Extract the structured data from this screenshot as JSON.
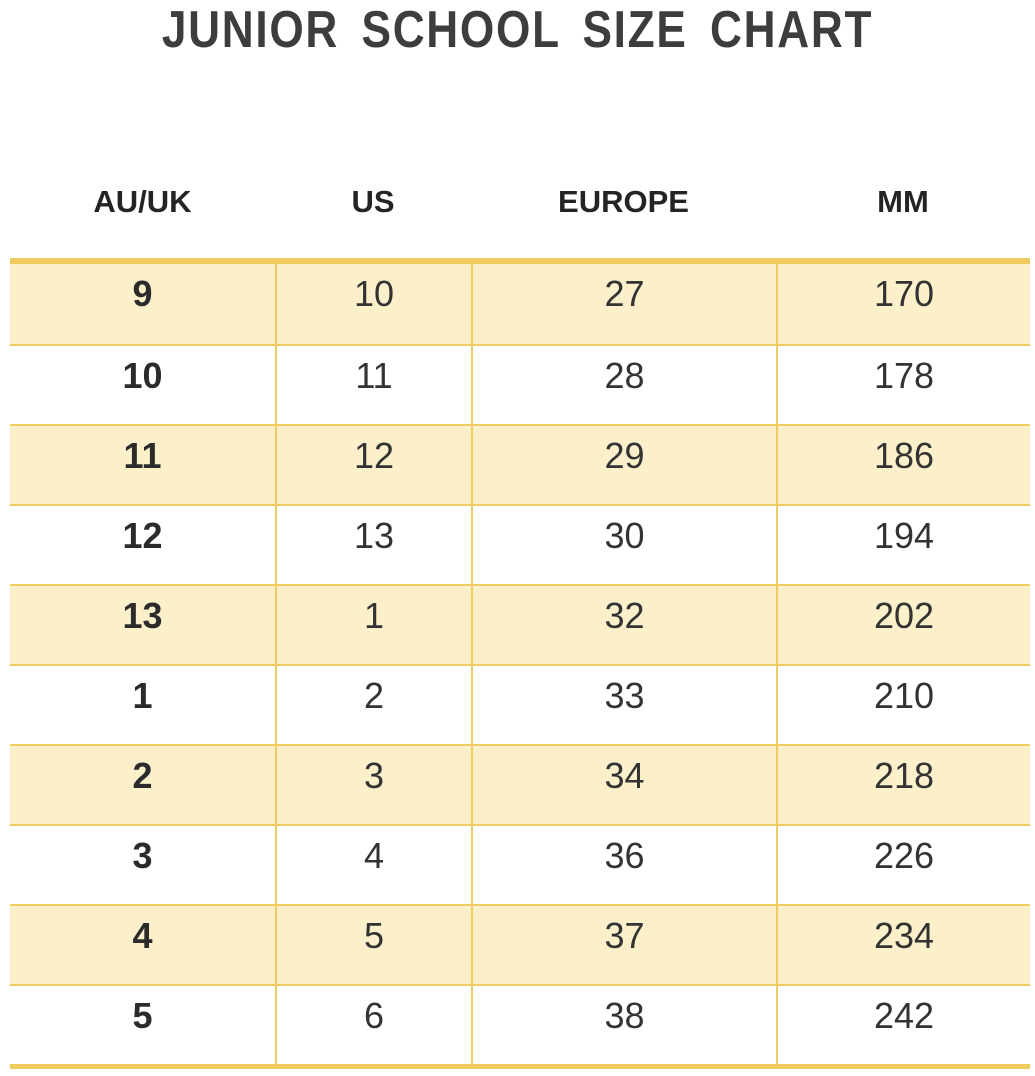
{
  "title": "JUNIOR SCHOOL SIZE CHART",
  "chart_data": {
    "type": "table",
    "title": "JUNIOR SCHOOL SIZE CHART",
    "columns": [
      "AU/UK",
      "US",
      "EUROPE",
      "MM"
    ],
    "rows": [
      [
        "9",
        "10",
        "27",
        "170"
      ],
      [
        "10",
        "11",
        "28",
        "178"
      ],
      [
        "11",
        "12",
        "29",
        "186"
      ],
      [
        "12",
        "13",
        "30",
        "194"
      ],
      [
        "13",
        "1",
        "32",
        "202"
      ],
      [
        "1",
        "2",
        "33",
        "210"
      ],
      [
        "2",
        "3",
        "34",
        "218"
      ],
      [
        "3",
        "4",
        "36",
        "226"
      ],
      [
        "4",
        "5",
        "37",
        "234"
      ],
      [
        "5",
        "6",
        "38",
        "242"
      ]
    ],
    "layout": {
      "striped": true,
      "first_stripe_row_index": 0,
      "bold_column": "AU/UK"
    },
    "colors": {
      "row_highlight": "#fbf0ca",
      "grid_line": "#efcd64",
      "border_thick": "#efcb5e",
      "title_text": "#3d3d3d",
      "cell_text": "#333333"
    }
  }
}
